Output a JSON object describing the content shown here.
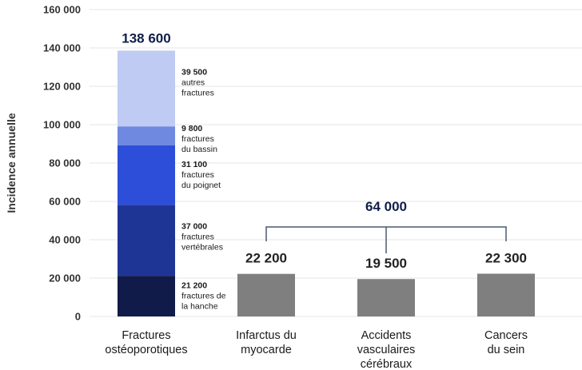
{
  "chart_data": {
    "type": "bar",
    "ylabel": "Incidence annuelle",
    "ylim": [
      0,
      160000
    ],
    "yticks": [
      "0",
      "20 000",
      "40 000",
      "60 000",
      "80 000",
      "100 000",
      "120 000",
      "140 000",
      "160 000"
    ],
    "yticks_values": [
      0,
      20000,
      40000,
      60000,
      80000,
      100000,
      120000,
      140000,
      160000
    ],
    "grid": true,
    "categories": [
      {
        "lines": [
          "Fractures",
          "ostéoporotiques"
        ]
      },
      {
        "lines": [
          "Infarctus du",
          "myocarde"
        ]
      },
      {
        "lines": [
          "Accidents",
          "vasculaires",
          "cérébraux"
        ]
      },
      {
        "lines": [
          "Cancers",
          "du sein"
        ]
      }
    ],
    "stacked_bar": {
      "category_index": 0,
      "total": 138600,
      "total_label": "138 600",
      "segments": [
        {
          "value": 21200,
          "value_label": "21 200",
          "name_lines": [
            "fractures de",
            "la hanche"
          ],
          "color": "#111b4a"
        },
        {
          "value": 37000,
          "value_label": "37 000",
          "name_lines": [
            "fractures",
            "vertébrales"
          ],
          "color": "#1f3596"
        },
        {
          "value": 31100,
          "value_label": "31 100",
          "name_lines": [
            "fractures",
            "du poignet"
          ],
          "color": "#2d4ed8"
        },
        {
          "value": 9800,
          "value_label": "9 800",
          "name_lines": [
            "fractures",
            "du bassin"
          ],
          "color": "#6f88e0"
        },
        {
          "value": 39500,
          "value_label": "39 500",
          "name_lines": [
            "autres",
            "fractures"
          ],
          "color": "#bfcbf2"
        }
      ]
    },
    "simple_bars": [
      {
        "category_index": 1,
        "value": 22200,
        "label": "22 200",
        "color": "#7f7f7f"
      },
      {
        "category_index": 2,
        "value": 19500,
        "label": "19 500",
        "color": "#7f7f7f"
      },
      {
        "category_index": 3,
        "value": 22300,
        "label": "22 300",
        "color": "#7f7f7f"
      }
    ],
    "bracket": {
      "from_category": 1,
      "to_category": 3,
      "total": 64000,
      "label": "64 000",
      "color": "#4a5a70"
    }
  }
}
